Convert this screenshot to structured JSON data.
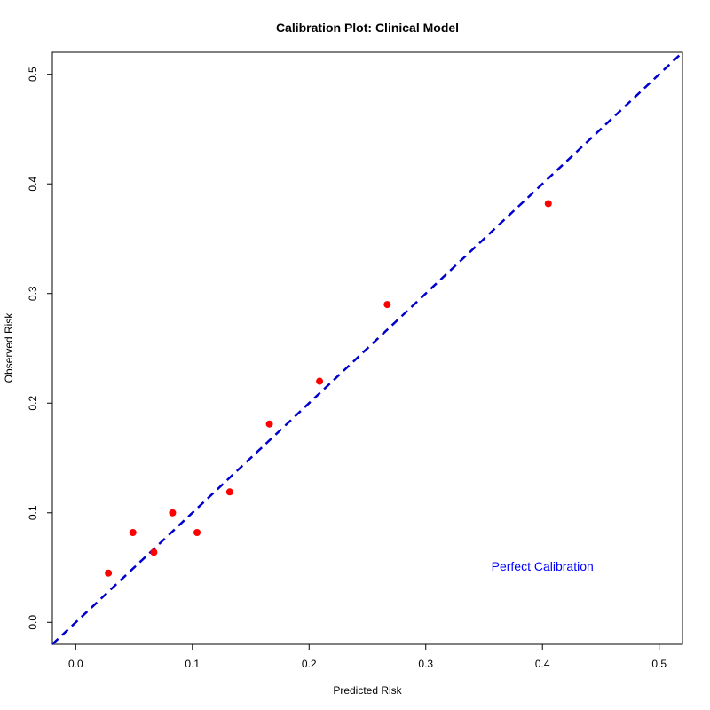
{
  "chart_data": {
    "type": "scatter",
    "title": "Calibration Plot: Clinical Model",
    "xlabel": "Predicted Risk",
    "ylabel": "Observed Risk",
    "xlim": [
      -0.02,
      0.52
    ],
    "ylim": [
      -0.02,
      0.52
    ],
    "xticks": [
      "0.0",
      "0.1",
      "0.2",
      "0.3",
      "0.4",
      "0.5"
    ],
    "yticks": [
      "0.0",
      "0.1",
      "0.2",
      "0.3",
      "0.4",
      "0.5"
    ],
    "grid": false,
    "series": [
      {
        "points": [
          {
            "x": 0.028,
            "y": 0.045
          },
          {
            "x": 0.049,
            "y": 0.082
          },
          {
            "x": 0.067,
            "y": 0.064
          },
          {
            "x": 0.083,
            "y": 0.1
          },
          {
            "x": 0.104,
            "y": 0.082
          },
          {
            "x": 0.132,
            "y": 0.119
          },
          {
            "x": 0.166,
            "y": 0.181
          },
          {
            "x": 0.209,
            "y": 0.22
          },
          {
            "x": 0.267,
            "y": 0.29
          },
          {
            "x": 0.405,
            "y": 0.382
          }
        ],
        "color": "#ff0000"
      }
    ],
    "reference_line": {
      "slope": 1,
      "intercept": 0,
      "style": "dashed",
      "color": "#0000cd"
    },
    "annotations": [
      {
        "text": "Perfect Calibration",
        "x": 0.4,
        "y": 0.047,
        "color": "#0000ff"
      }
    ]
  }
}
